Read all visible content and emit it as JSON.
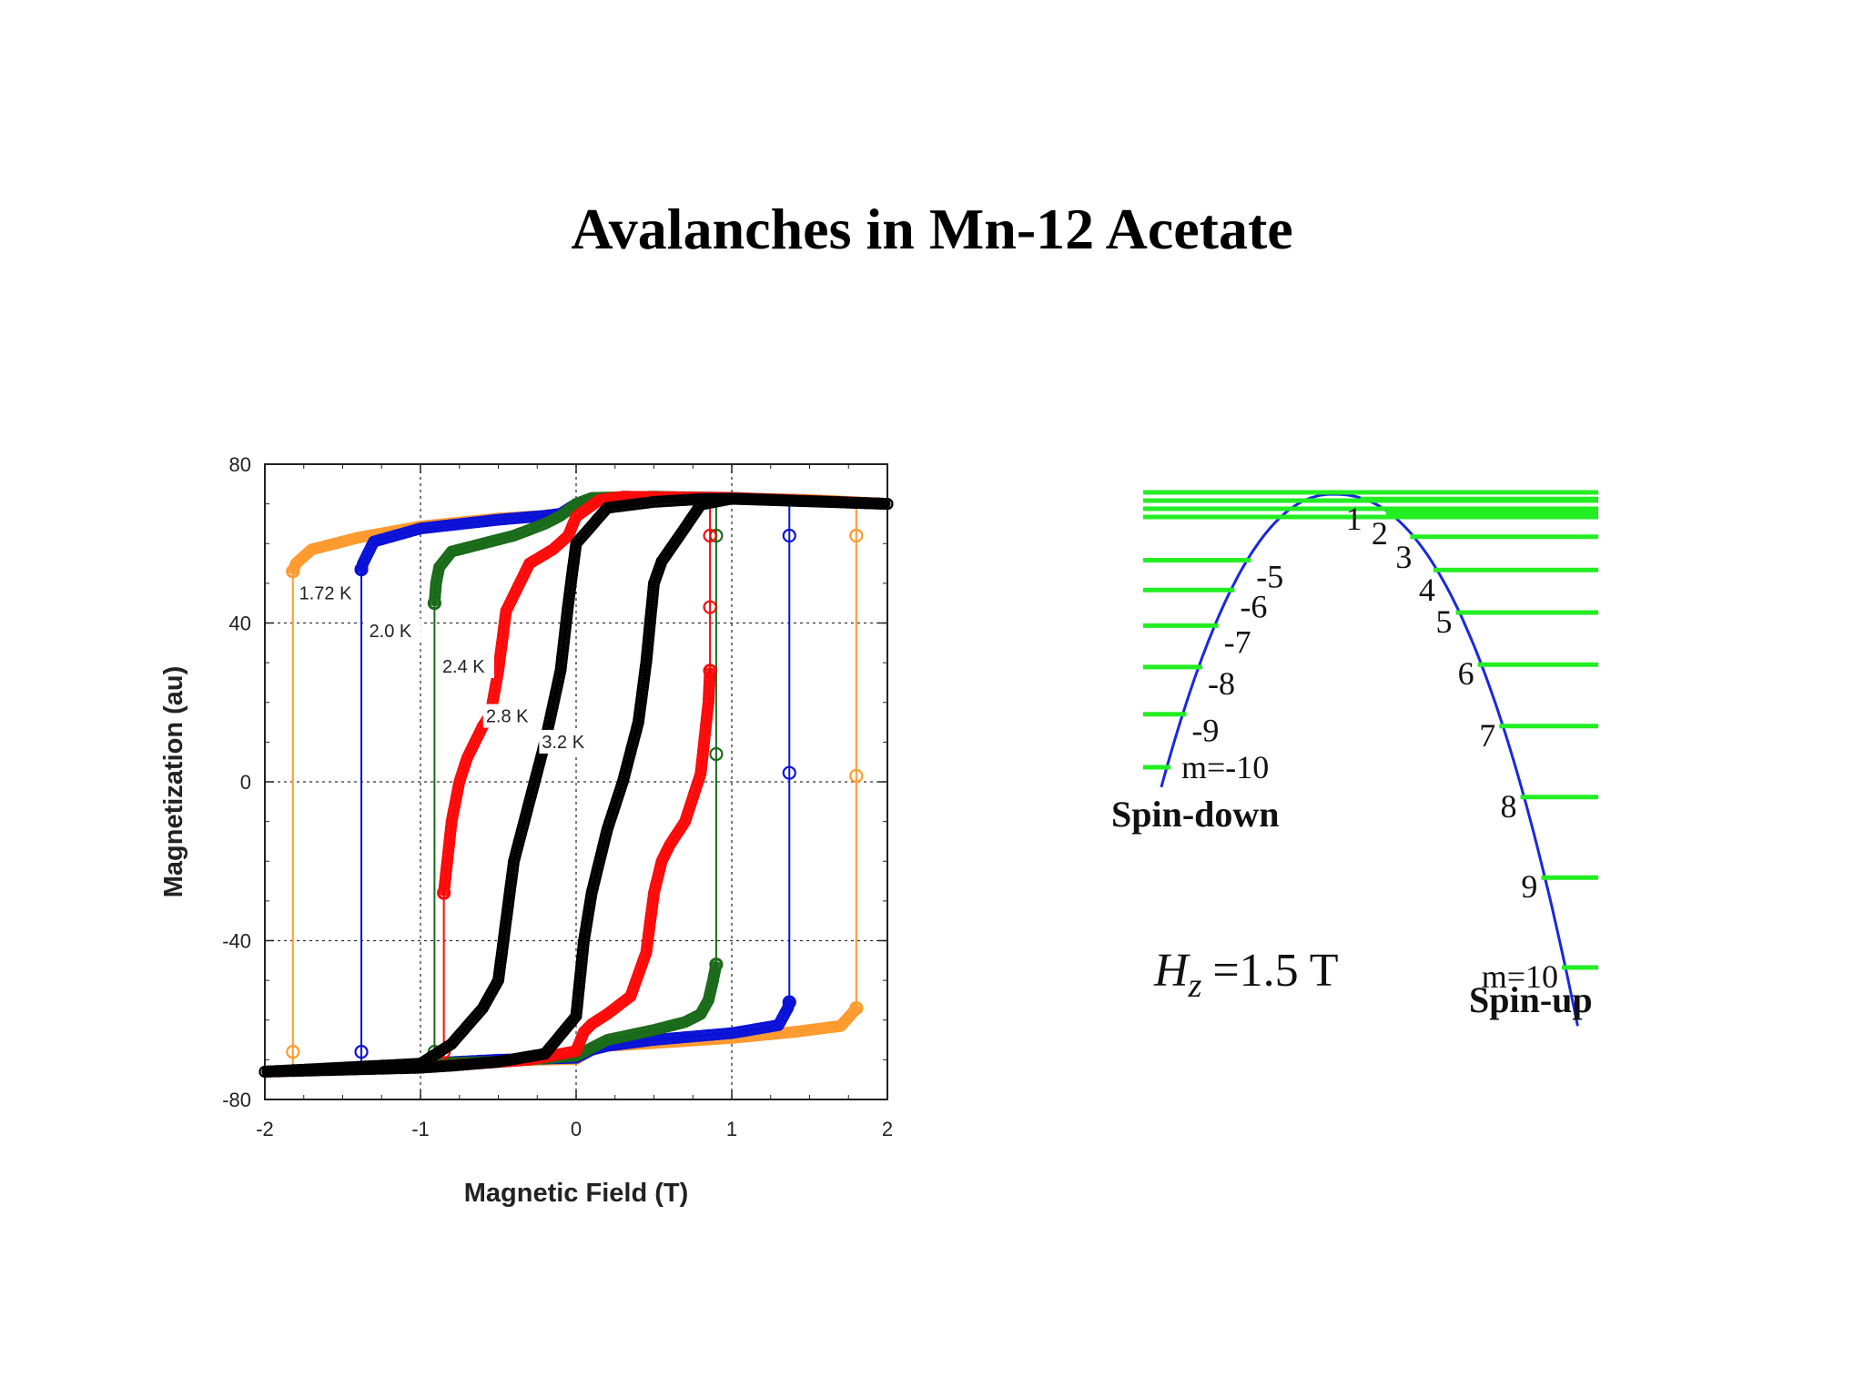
{
  "slide": {
    "title": "Avalanches in Mn-12 Acetate"
  },
  "colors": {
    "orange": "#ff9a2e",
    "blue": "#0a12d8",
    "green": "#1a6b1a",
    "red": "#ff0a0a",
    "black": "#000000",
    "level_green": "#22ee22",
    "parabola_blue": "#1a28e0"
  },
  "chart_data": [
    {
      "type": "line",
      "title": "",
      "xlabel": "Magnetic Field (T)",
      "ylabel": "Magnetization (au)",
      "xlim": [
        -2,
        2
      ],
      "ylim": [
        -80,
        80
      ],
      "xticks": [
        -2,
        -1,
        0,
        1,
        2
      ],
      "yticks": [
        -80,
        -40,
        0,
        40,
        80
      ],
      "grid": true,
      "annotations": [
        "1.72 K",
        "2.0 K",
        "2.4 K",
        "2.8 K",
        "3.2 K"
      ],
      "series": [
        {
          "name": "1.72 K",
          "color": "orange",
          "marker": "circle",
          "up": [
            [
              -2.0,
              -73
            ],
            [
              -1.5,
              -72.3
            ],
            [
              -1.0,
              -71.2
            ],
            [
              -0.5,
              -70.2
            ],
            [
              0.0,
              -69.8
            ],
            [
              0.1,
              -67.5
            ],
            [
              0.2,
              -66.5
            ],
            [
              0.5,
              -65.8
            ],
            [
              1.0,
              -64.5
            ],
            [
              1.4,
              -63.0
            ],
            [
              1.7,
              -61.5
            ],
            [
              1.78,
              -58
            ],
            [
              1.8,
              -57
            ]
          ],
          "down": [
            [
              2.0,
              70
            ],
            [
              1.5,
              71
            ],
            [
              0.5,
              71.8
            ],
            [
              0.2,
              71.6
            ],
            [
              0.0,
              70
            ],
            [
              -0.1,
              67.5
            ],
            [
              -0.2,
              67
            ],
            [
              -0.5,
              66.3
            ],
            [
              -1.0,
              64.3
            ],
            [
              -1.4,
              61.5
            ],
            [
              -1.7,
              58.5
            ],
            [
              -1.8,
              55
            ],
            [
              -1.82,
              53
            ]
          ],
          "jump_up_x": 1.8,
          "jump_down_x": -1.82
        },
        {
          "name": "2.0 K",
          "color": "blue",
          "marker": "circle",
          "up": [
            [
              -2.0,
              -73
            ],
            [
              -1.5,
              -72.2
            ],
            [
              -1.0,
              -71
            ],
            [
              -0.5,
              -70
            ],
            [
              0.0,
              -69.5
            ],
            [
              0.1,
              -67.5
            ],
            [
              0.2,
              -66.5
            ],
            [
              0.5,
              -65
            ],
            [
              1.0,
              -63.3
            ],
            [
              1.3,
              -61.3
            ],
            [
              1.36,
              -57
            ],
            [
              1.37,
              -55.5
            ]
          ],
          "down": [
            [
              2.0,
              70
            ],
            [
              1.0,
              71.5
            ],
            [
              0.3,
              71.8
            ],
            [
              0.1,
              70.5
            ],
            [
              0.0,
              70
            ],
            [
              -0.1,
              67.5
            ],
            [
              -0.2,
              67
            ],
            [
              -0.5,
              66
            ],
            [
              -1.0,
              63.8
            ],
            [
              -1.3,
              60.5
            ],
            [
              -1.37,
              55
            ],
            [
              -1.38,
              53.5
            ]
          ],
          "jump_up_x": 1.37,
          "jump_down_x": -1.38
        },
        {
          "name": "2.4 K",
          "color": "green",
          "marker": "circle",
          "up": [
            [
              -2.0,
              -73
            ],
            [
              -1.0,
              -71
            ],
            [
              -0.5,
              -70.5
            ],
            [
              0.0,
              -69
            ],
            [
              0.1,
              -67
            ],
            [
              0.2,
              -65
            ],
            [
              0.5,
              -62.5
            ],
            [
              0.7,
              -60.5
            ],
            [
              0.8,
              -58.5
            ],
            [
              0.85,
              -55
            ],
            [
              0.88,
              -50
            ],
            [
              0.9,
              -46
            ]
          ],
          "down": [
            [
              2.0,
              70
            ],
            [
              1.0,
              71.5
            ],
            [
              0.5,
              71.8
            ],
            [
              0.1,
              71.5
            ],
            [
              0.0,
              70
            ],
            [
              -0.1,
              67
            ],
            [
              -0.2,
              65
            ],
            [
              -0.4,
              62
            ],
            [
              -0.6,
              60
            ],
            [
              -0.8,
              58
            ],
            [
              -0.88,
              54
            ],
            [
              -0.9,
              50
            ],
            [
              -0.91,
              45
            ]
          ],
          "jump_up_x": 0.9,
          "jump_down_x": -0.91
        },
        {
          "name": "2.8 K",
          "color": "red",
          "marker": "circle",
          "up": [
            [
              -2.0,
              -73
            ],
            [
              -1.0,
              -72
            ],
            [
              -0.3,
              -70
            ],
            [
              0.0,
              -67.8
            ],
            [
              0.05,
              -63
            ],
            [
              0.1,
              -61
            ],
            [
              0.2,
              -58.5
            ],
            [
              0.35,
              -54
            ],
            [
              0.45,
              -43
            ],
            [
              0.5,
              -28
            ],
            [
              0.55,
              -20
            ],
            [
              0.6,
              -16
            ],
            [
              0.7,
              -10
            ],
            [
              0.8,
              2
            ],
            [
              0.85,
              20
            ],
            [
              0.86,
              28
            ]
          ],
          "down": [
            [
              2.0,
              70
            ],
            [
              1.0,
              71.5
            ],
            [
              0.3,
              71.8
            ],
            [
              0.15,
              71
            ],
            [
              0.0,
              66.8
            ],
            [
              -0.05,
              62
            ],
            [
              -0.15,
              58.5
            ],
            [
              -0.3,
              55
            ],
            [
              -0.45,
              43
            ],
            [
              -0.5,
              28
            ],
            [
              -0.55,
              17
            ],
            [
              -0.6,
              14
            ],
            [
              -0.7,
              6
            ],
            [
              -0.75,
              0
            ],
            [
              -0.8,
              -10
            ],
            [
              -0.85,
              -28
            ]
          ],
          "jump_up_x": 0.86,
          "jump_down_x": -0.85
        },
        {
          "name": "3.2 K",
          "color": "black",
          "marker": "circle",
          "up": [
            [
              -2.0,
              -73
            ],
            [
              -1.0,
              -72
            ],
            [
              -0.8,
              -71.5
            ],
            [
              -0.5,
              -70.5
            ],
            [
              -0.2,
              -68.5
            ],
            [
              0.0,
              -59
            ],
            [
              0.05,
              -40
            ],
            [
              0.1,
              -28
            ],
            [
              0.2,
              -12
            ],
            [
              0.3,
              0
            ],
            [
              0.4,
              15
            ],
            [
              0.45,
              30
            ],
            [
              0.5,
              50
            ],
            [
              0.55,
              55.5
            ],
            [
              0.7,
              64
            ],
            [
              0.8,
              69.8
            ],
            [
              1.0,
              71.3
            ],
            [
              2.0,
              70
            ]
          ],
          "down": [
            [
              2.0,
              70
            ],
            [
              1.0,
              71.3
            ],
            [
              0.8,
              71.2
            ],
            [
              0.5,
              70.5
            ],
            [
              0.2,
              69
            ],
            [
              0.0,
              60
            ],
            [
              -0.05,
              45
            ],
            [
              -0.1,
              28
            ],
            [
              -0.2,
              10
            ],
            [
              -0.3,
              -5
            ],
            [
              -0.4,
              -20
            ],
            [
              -0.45,
              -35
            ],
            [
              -0.5,
              -50
            ],
            [
              -0.6,
              -57
            ],
            [
              -0.8,
              -66
            ],
            [
              -1.0,
              -71
            ],
            [
              -1.5,
              -72
            ],
            [
              -2.0,
              -73
            ]
          ]
        }
      ]
    },
    {
      "type": "diagram",
      "title": "",
      "field_label": "=1.5 T",
      "field_symbol": "H",
      "field_subscript": "z",
      "region_labels": {
        "left": "Spin-down",
        "right": "Spin-up"
      },
      "left_levels": [
        {
          "m": -10,
          "label": "m=-10"
        },
        {
          "m": -9,
          "label": "-9"
        },
        {
          "m": -8,
          "label": "-8"
        },
        {
          "m": -7,
          "label": "-7"
        },
        {
          "m": -6,
          "label": "-6"
        },
        {
          "m": -5,
          "label": "-5"
        }
      ],
      "right_levels": [
        {
          "m": 1,
          "label": "1"
        },
        {
          "m": 2,
          "label": "2"
        },
        {
          "m": 3,
          "label": "3"
        },
        {
          "m": 4,
          "label": "4"
        },
        {
          "m": 5,
          "label": "5"
        },
        {
          "m": 6,
          "label": "6"
        },
        {
          "m": 7,
          "label": "7"
        },
        {
          "m": 8,
          "label": "8"
        },
        {
          "m": 9,
          "label": "9"
        },
        {
          "m": 10,
          "label": "m=10"
        }
      ],
      "top_levels_count": 4
    }
  ]
}
